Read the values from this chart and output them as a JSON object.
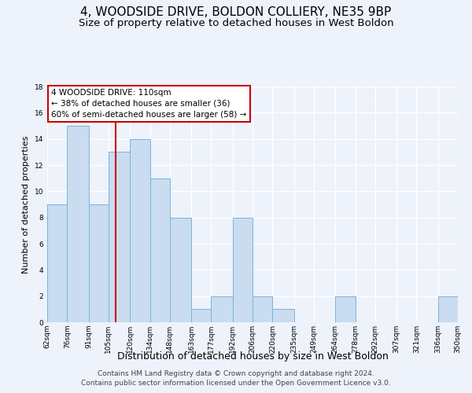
{
  "title": "4, WOODSIDE DRIVE, BOLDON COLLIERY, NE35 9BP",
  "subtitle": "Size of property relative to detached houses in West Boldon",
  "xlabel": "Distribution of detached houses by size in West Boldon",
  "ylabel": "Number of detached properties",
  "bin_labels": [
    "62sqm",
    "76sqm",
    "91sqm",
    "105sqm",
    "120sqm",
    "134sqm",
    "148sqm",
    "163sqm",
    "177sqm",
    "192sqm",
    "206sqm",
    "220sqm",
    "235sqm",
    "249sqm",
    "264sqm",
    "278sqm",
    "292sqm",
    "307sqm",
    "321sqm",
    "336sqm",
    "350sqm"
  ],
  "bar_values": [
    9,
    15,
    9,
    13,
    14,
    11,
    8,
    1,
    2,
    8,
    2,
    1,
    0,
    0,
    2,
    0,
    0,
    0,
    0,
    2
  ],
  "bar_color": "#c9dcf0",
  "bar_edge_color": "#7ab4d8",
  "property_line_x": 110,
  "bin_edges": [
    62,
    76,
    91,
    105,
    120,
    134,
    148,
    163,
    177,
    192,
    206,
    220,
    235,
    249,
    264,
    278,
    292,
    307,
    321,
    336,
    350
  ],
  "annotation_title": "4 WOODSIDE DRIVE: 110sqm",
  "annotation_line1": "← 38% of detached houses are smaller (36)",
  "annotation_line2": "60% of semi-detached houses are larger (58) →",
  "annotation_box_color": "#ffffff",
  "annotation_box_edge": "#cc0000",
  "property_line_color": "#cc0000",
  "ylim": [
    0,
    18
  ],
  "yticks": [
    0,
    2,
    4,
    6,
    8,
    10,
    12,
    14,
    16,
    18
  ],
  "footer_line1": "Contains HM Land Registry data © Crown copyright and database right 2024.",
  "footer_line2": "Contains public sector information licensed under the Open Government Licence v3.0.",
  "background_color": "#edf2fb",
  "title_fontsize": 11,
  "subtitle_fontsize": 9.5,
  "xlabel_fontsize": 9,
  "ylabel_fontsize": 8,
  "footer_fontsize": 6.5,
  "tick_fontsize": 6.5
}
